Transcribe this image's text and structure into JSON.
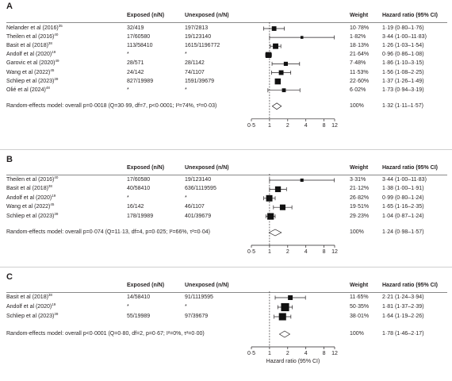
{
  "headers": {
    "exposed": "Exposed (n/N)",
    "unexposed": "Unexposed (n/N)",
    "weight": "Weight",
    "hr": "Hazard ratio (95% CI)"
  },
  "panels": [
    {
      "label": "A",
      "studies": [
        {
          "author": "Nelander et al (2016)",
          "ref": "35",
          "exposed": "32/419",
          "unexposed": "197/2813",
          "weight": "10·78%",
          "hr_text": "1·19 (0·80–1·76)",
          "hr": 1.19,
          "lo": 0.8,
          "hi": 1.76
        },
        {
          "author": "Theilen et al (2016)",
          "ref": "40",
          "exposed": "17/60580",
          "unexposed": "19/123140",
          "weight": "1·82%",
          "hr_text": "3·44 (1·00–11·83)",
          "hr": 3.44,
          "lo": 1.0,
          "hi": 11.83
        },
        {
          "author": "Basit et al (2018)",
          "ref": "38",
          "exposed": "113/58410",
          "unexposed": "1615/1196772",
          "weight": "18·13%",
          "hr_text": "1·26 (1·03–1·54)",
          "hr": 1.26,
          "lo": 1.03,
          "hi": 1.54
        },
        {
          "author": "Andolf et al (2020)",
          "ref": "19",
          "exposed": "*",
          "unexposed": "*",
          "weight": "21·64%",
          "hr_text": "0·96 (0·86–1·08)",
          "hr": 0.96,
          "lo": 0.86,
          "hi": 1.08
        },
        {
          "author": "Garovic et al (2020)",
          "ref": "49",
          "exposed": "28/571",
          "unexposed": "28/1142",
          "weight": "7·48%",
          "hr_text": "1·86 (1·10–3·15)",
          "hr": 1.86,
          "lo": 1.1,
          "hi": 3.15
        },
        {
          "author": "Wang et al (2022)",
          "ref": "45",
          "exposed": "24/142",
          "unexposed": "74/1107",
          "weight": "11·53%",
          "hr_text": "1·56 (1·08–2·25)",
          "hr": 1.56,
          "lo": 1.08,
          "hi": 2.25
        },
        {
          "author": "Schliep et al (2023)",
          "ref": "39",
          "exposed": "827/19989",
          "unexposed": "1591/39679",
          "weight": "22·60%",
          "hr_text": "1·37 (1·26–1·49)",
          "hr": 1.37,
          "lo": 1.26,
          "hi": 1.49
        },
        {
          "author": "Olié et al (2024)",
          "ref": "48",
          "exposed": "*",
          "unexposed": "*",
          "weight": "6·02%",
          "hr_text": "1·73 (0·94–3·19)",
          "hr": 1.73,
          "lo": 0.94,
          "hi": 3.19
        }
      ],
      "summary": {
        "text": "Random-effects model: overall p=0·0018 (Q=30·99, df=7, p<0·0001; I²=74%, τ²=0·03)",
        "weight": "100%",
        "hr_text": "1·32 (1·11–1·57)",
        "hr": 1.32,
        "lo": 1.11,
        "hi": 1.57
      },
      "ticks": [
        "0·5",
        "1",
        "2",
        "4",
        "8",
        "12"
      ],
      "axis_title": ""
    },
    {
      "label": "B",
      "studies": [
        {
          "author": "Theilen et al (2016)",
          "ref": "40",
          "exposed": "17/60580",
          "unexposed": "19/123140",
          "weight": "3·31%",
          "hr_text": "3·44 (1·00–11·83)",
          "hr": 3.44,
          "lo": 1.0,
          "hi": 11.83
        },
        {
          "author": "Basit et al (2018)",
          "ref": "38",
          "exposed": "40/58410",
          "unexposed": "636/1119595",
          "weight": "21·12%",
          "hr_text": "1·38 (1·00–1·91)",
          "hr": 1.38,
          "lo": 1.0,
          "hi": 1.91
        },
        {
          "author": "Andolf et al (2020)",
          "ref": "19",
          "exposed": "*",
          "unexposed": "*",
          "weight": "26·82%",
          "hr_text": "0·99 (0·80–1·24)",
          "hr": 0.99,
          "lo": 0.8,
          "hi": 1.24
        },
        {
          "author": "Wang et al (2022)",
          "ref": "45",
          "exposed": "16/142",
          "unexposed": "46/1107",
          "weight": "19·51%",
          "hr_text": "1·65 (1·16–2·35)",
          "hr": 1.65,
          "lo": 1.16,
          "hi": 2.35
        },
        {
          "author": "Schliep et al (2023)",
          "ref": "39",
          "exposed": "178/19989",
          "unexposed": "401/39679",
          "weight": "29·23%",
          "hr_text": "1·04 (0·87–1·24)",
          "hr": 1.04,
          "lo": 0.87,
          "hi": 1.24
        }
      ],
      "summary": {
        "text": "Random-effects model: overall p=0·074 (Q=11·13, df=4, p=0·025; I²=66%, τ²=0·04)",
        "weight": "100%",
        "hr_text": "1·24 (0·98–1·57)",
        "hr": 1.24,
        "lo": 0.98,
        "hi": 1.57
      },
      "ticks": [
        "0·5",
        "1",
        "2",
        "4",
        "8",
        "12"
      ],
      "axis_title": ""
    },
    {
      "label": "C",
      "studies": [
        {
          "author": "Basit et al (2018)",
          "ref": "38",
          "exposed": "14/58410",
          "unexposed": "91/1119595",
          "weight": "11·65%",
          "hr_text": "2·21 (1·24–3·94)",
          "hr": 2.21,
          "lo": 1.24,
          "hi": 3.94
        },
        {
          "author": "Andolf et al (2020)",
          "ref": "19",
          "exposed": "*",
          "unexposed": "*",
          "weight": "50·35%",
          "hr_text": "1·81 (1·37–2·39)",
          "hr": 1.81,
          "lo": 1.37,
          "hi": 2.39
        },
        {
          "author": "Schliep et al (2023)",
          "ref": "39",
          "exposed": "55/19989",
          "unexposed": "97/39679",
          "weight": "38·01%",
          "hr_text": "1·64 (1·19–2·26)",
          "hr": 1.64,
          "lo": 1.19,
          "hi": 2.26
        }
      ],
      "summary": {
        "text": "Random-effects model: overall p<0·0001 (Q=0·80, df=2, p=0·67; I²=0%, τ²=0·00)",
        "weight": "100%",
        "hr_text": "1·78 (1·46–2·17)",
        "hr": 1.78,
        "lo": 1.46,
        "hi": 2.17
      },
      "ticks": [
        "0·5",
        "1",
        "2",
        "4",
        "8",
        "12"
      ],
      "axis_title": "Hazard ratio (95% CI)"
    }
  ],
  "chart_data": [
    {
      "type": "forest",
      "panel": "A",
      "x_scale": "log",
      "xlim": [
        0.5,
        12
      ],
      "xticks": [
        0.5,
        1,
        2,
        4,
        8,
        12
      ],
      "reference_line": 1,
      "estimates": [
        {
          "study": "Nelander et al (2016)",
          "hr": 1.19,
          "lo": 0.8,
          "hi": 1.76,
          "weight": 10.78
        },
        {
          "study": "Theilen et al (2016)",
          "hr": 3.44,
          "lo": 1.0,
          "hi": 11.83,
          "weight": 1.82
        },
        {
          "study": "Basit et al (2018)",
          "hr": 1.26,
          "lo": 1.03,
          "hi": 1.54,
          "weight": 18.13
        },
        {
          "study": "Andolf et al (2020)",
          "hr": 0.96,
          "lo": 0.86,
          "hi": 1.08,
          "weight": 21.64
        },
        {
          "study": "Garovic et al (2020)",
          "hr": 1.86,
          "lo": 1.1,
          "hi": 3.15,
          "weight": 7.48
        },
        {
          "study": "Wang et al (2022)",
          "hr": 1.56,
          "lo": 1.08,
          "hi": 2.25,
          "weight": 11.53
        },
        {
          "study": "Schliep et al (2023)",
          "hr": 1.37,
          "lo": 1.26,
          "hi": 1.49,
          "weight": 22.6
        },
        {
          "study": "Olié et al (2024)",
          "hr": 1.73,
          "lo": 0.94,
          "hi": 3.19,
          "weight": 6.02
        }
      ],
      "pooled": {
        "hr": 1.32,
        "lo": 1.11,
        "hi": 1.57
      }
    },
    {
      "type": "forest",
      "panel": "B",
      "x_scale": "log",
      "xlim": [
        0.5,
        12
      ],
      "xticks": [
        0.5,
        1,
        2,
        4,
        8,
        12
      ],
      "reference_line": 1,
      "estimates": [
        {
          "study": "Theilen et al (2016)",
          "hr": 3.44,
          "lo": 1.0,
          "hi": 11.83,
          "weight": 3.31
        },
        {
          "study": "Basit et al (2018)",
          "hr": 1.38,
          "lo": 1.0,
          "hi": 1.91,
          "weight": 21.12
        },
        {
          "study": "Andolf et al (2020)",
          "hr": 0.99,
          "lo": 0.8,
          "hi": 1.24,
          "weight": 26.82
        },
        {
          "study": "Wang et al (2022)",
          "hr": 1.65,
          "lo": 1.16,
          "hi": 2.35,
          "weight": 19.51
        },
        {
          "study": "Schliep et al (2023)",
          "hr": 1.04,
          "lo": 0.87,
          "hi": 1.24,
          "weight": 29.23
        }
      ],
      "pooled": {
        "hr": 1.24,
        "lo": 0.98,
        "hi": 1.57
      }
    },
    {
      "type": "forest",
      "panel": "C",
      "x_scale": "log",
      "xlim": [
        0.5,
        12
      ],
      "xticks": [
        0.5,
        1,
        2,
        4,
        8,
        12
      ],
      "reference_line": 1,
      "xlabel": "Hazard ratio (95% CI)",
      "estimates": [
        {
          "study": "Basit et al (2018)",
          "hr": 2.21,
          "lo": 1.24,
          "hi": 3.94,
          "weight": 11.65
        },
        {
          "study": "Andolf et al (2020)",
          "hr": 1.81,
          "lo": 1.37,
          "hi": 2.39,
          "weight": 50.35
        },
        {
          "study": "Schliep et al (2023)",
          "hr": 1.64,
          "lo": 1.19,
          "hi": 2.26,
          "weight": 38.01
        }
      ],
      "pooled": {
        "hr": 1.78,
        "lo": 1.46,
        "hi": 2.17
      }
    }
  ]
}
